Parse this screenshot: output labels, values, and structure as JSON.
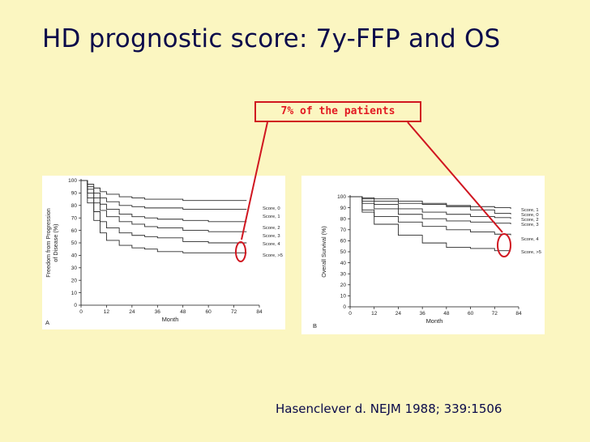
{
  "slide": {
    "title": "HD prognostic score: 7y-FFP and OS",
    "annotation": "7% of the patients",
    "citation": "Hasenclever d. NEJM 1988; 339:1506"
  },
  "colors": {
    "annotation": "#e31b23",
    "title": "#0a0a4a",
    "background": "#fbf6c1"
  },
  "chart_data": [
    {
      "type": "line",
      "panel_label": "A",
      "xlabel": "Month",
      "ylabel": "Freedom from Progression of Disease (%)",
      "xlim": [
        0,
        84
      ],
      "ylim": [
        0,
        100
      ],
      "xticks": [
        0,
        12,
        24,
        36,
        48,
        60,
        72,
        84
      ],
      "yticks": [
        0,
        10,
        20,
        30,
        40,
        50,
        60,
        70,
        80,
        90,
        100
      ],
      "highlight": "Score, >5",
      "series": [
        {
          "name": "Score, 0",
          "x": [
            0,
            3,
            6,
            9,
            12,
            18,
            24,
            30,
            36,
            48,
            60,
            72,
            78
          ],
          "y": [
            100,
            97,
            94,
            91,
            89,
            87,
            86,
            85,
            85,
            84,
            84,
            84,
            84
          ]
        },
        {
          "name": "Score, 1",
          "x": [
            0,
            3,
            6,
            9,
            12,
            18,
            24,
            30,
            36,
            48,
            60,
            72,
            78
          ],
          "y": [
            100,
            95,
            90,
            86,
            83,
            80,
            79,
            78,
            78,
            77,
            77,
            77,
            77
          ]
        },
        {
          "name": "Score, 2",
          "x": [
            0,
            3,
            6,
            9,
            12,
            18,
            24,
            30,
            36,
            48,
            60,
            72,
            78
          ],
          "y": [
            100,
            93,
            86,
            81,
            77,
            73,
            71,
            70,
            69,
            68,
            67,
            67,
            67
          ]
        },
        {
          "name": "Score, 3",
          "x": [
            0,
            3,
            6,
            9,
            12,
            18,
            24,
            30,
            36,
            48,
            60,
            72,
            78
          ],
          "y": [
            100,
            90,
            82,
            76,
            71,
            67,
            65,
            63,
            62,
            60,
            59,
            59,
            59
          ]
        },
        {
          "name": "Score, 4",
          "x": [
            0,
            3,
            6,
            9,
            12,
            18,
            24,
            30,
            36,
            48,
            60,
            72,
            78
          ],
          "y": [
            100,
            86,
            75,
            67,
            62,
            58,
            56,
            55,
            54,
            51,
            50,
            50,
            50
          ]
        },
        {
          "name": "Score, >5",
          "x": [
            0,
            3,
            6,
            9,
            12,
            18,
            24,
            30,
            36,
            48,
            60,
            72,
            78
          ],
          "y": [
            100,
            82,
            68,
            58,
            52,
            48,
            46,
            45,
            43,
            42,
            42,
            42,
            42
          ]
        }
      ]
    },
    {
      "type": "line",
      "panel_label": "B",
      "xlabel": "Month",
      "ylabel": "Overall Survival (%)",
      "xlim": [
        0,
        84
      ],
      "ylim": [
        0,
        100
      ],
      "xticks": [
        0,
        12,
        24,
        36,
        48,
        60,
        72,
        84
      ],
      "yticks": [
        0,
        10,
        20,
        30,
        40,
        50,
        60,
        70,
        80,
        90,
        100
      ],
      "highlight": "Score, >5",
      "series": [
        {
          "name": "Score, 1",
          "x": [
            0,
            6,
            12,
            24,
            36,
            48,
            60,
            72,
            80
          ],
          "y": [
            100,
            98,
            96,
            94,
            93,
            92,
            91,
            90,
            89
          ]
        },
        {
          "name": "Score, 0",
          "x": [
            0,
            6,
            12,
            24,
            36,
            48,
            60,
            72,
            80
          ],
          "y": [
            100,
            99,
            98,
            96,
            94,
            91,
            88,
            85,
            84
          ]
        },
        {
          "name": "Score, 2",
          "x": [
            0,
            6,
            12,
            24,
            36,
            48,
            60,
            72,
            80
          ],
          "y": [
            100,
            96,
            93,
            89,
            86,
            84,
            82,
            81,
            80
          ]
        },
        {
          "name": "Score, 3",
          "x": [
            0,
            6,
            12,
            24,
            36,
            48,
            60,
            72,
            80
          ],
          "y": [
            100,
            94,
            89,
            84,
            80,
            78,
            77,
            76,
            75
          ]
        },
        {
          "name": "Score, 4",
          "x": [
            0,
            6,
            12,
            24,
            36,
            48,
            60,
            72,
            80
          ],
          "y": [
            100,
            88,
            82,
            77,
            73,
            70,
            68,
            66,
            65
          ]
        },
        {
          "name": "Score, >5",
          "x": [
            0,
            6,
            12,
            24,
            36,
            48,
            60,
            72,
            80
          ],
          "y": [
            100,
            86,
            75,
            65,
            58,
            54,
            53,
            51,
            51
          ]
        }
      ]
    }
  ]
}
